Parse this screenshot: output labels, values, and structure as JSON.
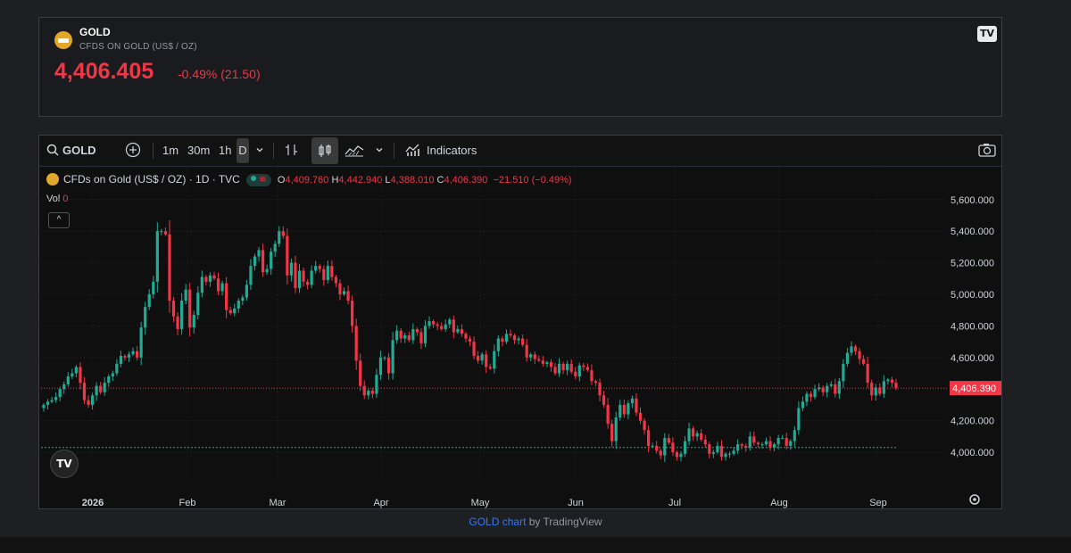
{
  "symbol_widget": {
    "name": "GOLD",
    "description": "CFDS ON GOLD (US$ / OZ)",
    "price": "4,406.405",
    "change": "-0.49% (21.50)",
    "badge": "TV"
  },
  "toolbar": {
    "search_label": "GOLD",
    "intervals": [
      "1m",
      "30m",
      "1h",
      "D"
    ],
    "active_interval": "D",
    "indicators_label": "Indicators"
  },
  "legend": {
    "title": "CFDs on Gold (US$ / OZ) · 1D · TVC",
    "wave": "≋",
    "open_label": "O",
    "open": "4,409.760",
    "high_label": "H",
    "high": "4,442.940",
    "low_label": "L",
    "low": "4,388.010",
    "close_label": "C",
    "close": "4,406.390",
    "change": "−21.510 (−0.49%)",
    "vol_label": "Vol",
    "vol_value": "0",
    "collapse": "^"
  },
  "watermark": "TV",
  "footer": {
    "link": "GOLD chart",
    "suffix": " by TradingView"
  },
  "colors": {
    "up": "#22ab94",
    "down": "#f23645",
    "background": "#0f0f0f",
    "accent_gold": "#e2a62a"
  },
  "icons": [
    "search-icon",
    "add-symbol-icon",
    "chevron-down-icon",
    "bar-style-icon",
    "candles-icon",
    "area-chart-icon",
    "indicators-icon",
    "camera-icon",
    "settings-gear-icon"
  ],
  "chart_data": {
    "type": "candlestick",
    "y_ticks": [
      "5,600.000",
      "5,400.000",
      "5,200.000",
      "5,000.000",
      "4,800.000",
      "4,600.000",
      "4,400.000",
      "4,200.000",
      "4,000.000"
    ],
    "ylim": [
      3800,
      5700
    ],
    "x_ticks": [
      "2026",
      "Feb",
      "Mar",
      "Apr",
      "May",
      "Jun",
      "Jul",
      "Aug",
      "Sep"
    ],
    "last_price_label": "4,406.390",
    "last_price": 4406.39,
    "reference_line": 4030,
    "closes": [
      4300,
      4320,
      4330,
      4350,
      4400,
      4430,
      4480,
      4500,
      4540,
      4440,
      4330,
      4300,
      4360,
      4420,
      4380,
      4440,
      4480,
      4500,
      4560,
      4610,
      4600,
      4620,
      4640,
      4600,
      4790,
      4920,
      5000,
      5080,
      5400,
      5400,
      5380,
      4960,
      4860,
      4780,
      4960,
      5030,
      4790,
      4870,
      5010,
      5110,
      5080,
      5120,
      5100,
      5020,
      5070,
      4900,
      4880,
      4910,
      4960,
      4980,
      5060,
      5180,
      5240,
      5280,
      5140,
      5160,
      5270,
      5320,
      5400,
      5370,
      5120,
      5200,
      5040,
      5150,
      5080,
      5060,
      5150,
      5180,
      5160,
      5090,
      5180,
      5110,
      5070,
      5000,
      5020,
      4960,
      4800,
      4580,
      4420,
      4360,
      4390,
      4370,
      4490,
      4600,
      4600,
      4500,
      4710,
      4770,
      4720,
      4740,
      4710,
      4780,
      4760,
      4690,
      4800,
      4830,
      4810,
      4800,
      4780,
      4810,
      4840,
      4760,
      4780,
      4750,
      4720,
      4700,
      4610,
      4580,
      4620,
      4540,
      4530,
      4640,
      4720,
      4700,
      4750,
      4740,
      4710,
      4720,
      4680,
      4600,
      4620,
      4590,
      4580,
      4560,
      4570,
      4540,
      4500,
      4560,
      4520,
      4560,
      4510,
      4480,
      4550,
      4540,
      4520,
      4450,
      4440,
      4360,
      4300,
      4180,
      4070,
      4220,
      4300,
      4240,
      4310,
      4340,
      4250,
      4200,
      4140,
      4040,
      4040,
      4010,
      3980,
      4090,
      4060,
      4000,
      3970,
      3990,
      4070,
      4150,
      4100,
      4120,
      4080,
      4050,
      3990,
      4000,
      4040,
      3970,
      3990,
      3990,
      4010,
      4050,
      4040,
      4030,
      4100,
      4060,
      4050,
      4050,
      4070,
      4030,
      4050,
      4090,
      4090,
      4040,
      4070,
      4140,
      4280,
      4320,
      4370,
      4350,
      4400,
      4410,
      4380,
      4420,
      4430,
      4370,
      4450,
      4560,
      4630,
      4670,
      4640,
      4590,
      4560,
      4440,
      4360,
      4410,
      4370,
      4450,
      4460,
      4440,
      4406
    ]
  }
}
